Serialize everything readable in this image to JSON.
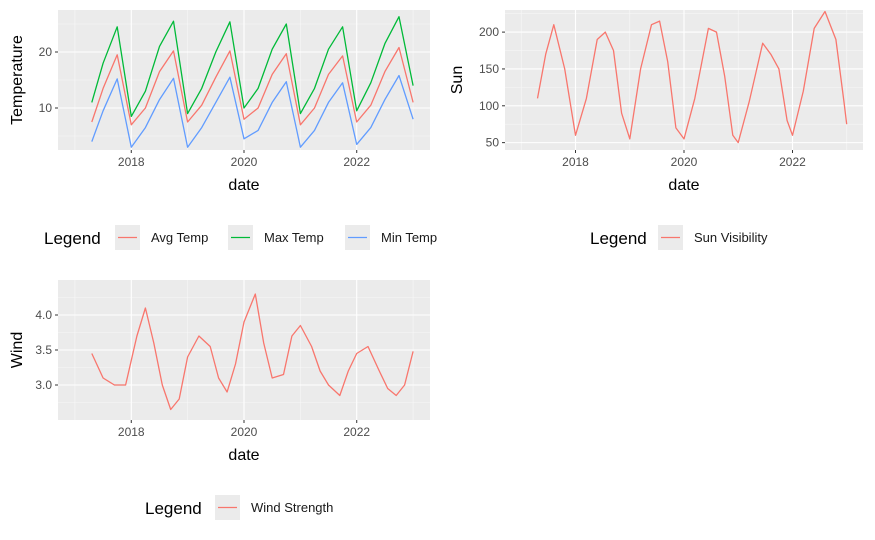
{
  "chart_data": [
    {
      "type": "line",
      "xlabel": "date",
      "ylabel": "Temperature",
      "legend_title": "Legend",
      "legend_position": "bottom",
      "x_ticks": [
        "2018",
        "2020",
        "2022"
      ],
      "y_ticks": [
        10,
        20
      ],
      "xlim": [
        2016.7,
        2023.3
      ],
      "ylim": [
        2.5,
        27.5
      ],
      "grid": true,
      "series": [
        {
          "name": "Avg Temp",
          "color": "#F8766D",
          "x": [
            2017.3,
            2017.5,
            2017.75,
            2018.0,
            2018.25,
            2018.5,
            2018.75,
            2019.0,
            2019.25,
            2019.5,
            2019.75,
            2020.0,
            2020.25,
            2020.5,
            2020.75,
            2021.0,
            2021.25,
            2021.5,
            2021.75,
            2022.0,
            2022.25,
            2022.5,
            2022.75,
            2023.0
          ],
          "y": [
            7.5,
            13.5,
            19.5,
            7.0,
            10.0,
            16.5,
            20.2,
            7.5,
            10.5,
            15.5,
            20.2,
            8.0,
            10.0,
            16.0,
            19.7,
            7.0,
            10.0,
            16.0,
            19.3,
            7.5,
            10.5,
            16.5,
            20.8,
            11.0
          ]
        },
        {
          "name": "Max Temp",
          "color": "#00BA38",
          "x": [
            2017.3,
            2017.5,
            2017.75,
            2018.0,
            2018.25,
            2018.5,
            2018.75,
            2019.0,
            2019.25,
            2019.5,
            2019.75,
            2020.0,
            2020.25,
            2020.5,
            2020.75,
            2021.0,
            2021.25,
            2021.5,
            2021.75,
            2022.0,
            2022.25,
            2022.5,
            2022.75,
            2023.0
          ],
          "y": [
            11.0,
            18.0,
            24.5,
            8.5,
            13.0,
            21.0,
            25.5,
            9.0,
            13.5,
            20.0,
            25.4,
            10.0,
            13.5,
            20.5,
            25.0,
            9.0,
            13.5,
            20.5,
            24.5,
            9.5,
            14.5,
            21.5,
            26.3,
            14.0
          ]
        },
        {
          "name": "Min Temp",
          "color": "#619CFF",
          "x": [
            2017.3,
            2017.5,
            2017.75,
            2018.0,
            2018.25,
            2018.5,
            2018.75,
            2019.0,
            2019.25,
            2019.5,
            2019.75,
            2020.0,
            2020.25,
            2020.5,
            2020.75,
            2021.0,
            2021.25,
            2021.5,
            2021.75,
            2022.0,
            2022.25,
            2022.5,
            2022.75,
            2023.0
          ],
          "y": [
            4.0,
            9.5,
            15.2,
            3.0,
            6.5,
            11.5,
            15.3,
            3.0,
            6.5,
            11.0,
            15.5,
            4.5,
            6.0,
            11.0,
            14.7,
            3.0,
            6.0,
            11.0,
            14.5,
            3.5,
            6.5,
            11.5,
            15.8,
            8.0
          ]
        }
      ]
    },
    {
      "type": "line",
      "xlabel": "date",
      "ylabel": "Sun",
      "legend_title": "Legend",
      "legend_position": "bottom",
      "x_ticks": [
        "2018",
        "2020",
        "2022"
      ],
      "y_ticks": [
        50,
        100,
        150,
        200
      ],
      "xlim": [
        2016.7,
        2023.3
      ],
      "ylim": [
        40,
        230
      ],
      "grid": true,
      "series": [
        {
          "name": "Sun Visibility",
          "color": "#F8766D",
          "x": [
            2017.3,
            2017.45,
            2017.6,
            2017.8,
            2018.0,
            2018.2,
            2018.4,
            2018.55,
            2018.7,
            2018.85,
            2019.0,
            2019.2,
            2019.4,
            2019.55,
            2019.7,
            2019.85,
            2020.0,
            2020.2,
            2020.45,
            2020.6,
            2020.75,
            2020.9,
            2021.0,
            2021.2,
            2021.45,
            2021.6,
            2021.75,
            2021.9,
            2022.0,
            2022.2,
            2022.4,
            2022.6,
            2022.8,
            2022.95,
            2023.0
          ],
          "x_note": "",
          "y": [
            110,
            170,
            210,
            150,
            60,
            110,
            190,
            200,
            175,
            90,
            55,
            150,
            210,
            215,
            160,
            70,
            55,
            110,
            205,
            200,
            140,
            60,
            50,
            105,
            185,
            170,
            150,
            80,
            60,
            120,
            205,
            228,
            190,
            105,
            75
          ]
        }
      ]
    },
    {
      "type": "line",
      "xlabel": "date",
      "ylabel": "Wind",
      "legend_title": "Legend",
      "legend_position": "bottom",
      "x_ticks": [
        "2018",
        "2020",
        "2022"
      ],
      "y_ticks": [
        "3.0",
        "3.5",
        "4.0"
      ],
      "xlim": [
        2016.7,
        2023.3
      ],
      "ylim": [
        2.5,
        4.5
      ],
      "grid": true,
      "series": [
        {
          "name": "Wind Strength",
          "color": "#F8766D",
          "x": [
            2017.3,
            2017.5,
            2017.7,
            2017.9,
            2018.1,
            2018.25,
            2018.4,
            2018.55,
            2018.7,
            2018.85,
            2019.0,
            2019.2,
            2019.4,
            2019.55,
            2019.7,
            2019.85,
            2020.0,
            2020.2,
            2020.35,
            2020.5,
            2020.7,
            2020.85,
            2021.0,
            2021.2,
            2021.35,
            2021.5,
            2021.7,
            2021.85,
            2022.0,
            2022.2,
            2022.4,
            2022.55,
            2022.7,
            2022.85,
            2023.0
          ],
          "y": [
            3.45,
            3.1,
            3.0,
            3.0,
            3.7,
            4.1,
            3.6,
            3.0,
            2.65,
            2.8,
            3.4,
            3.7,
            3.55,
            3.1,
            2.9,
            3.3,
            3.9,
            4.3,
            3.6,
            3.1,
            3.15,
            3.7,
            3.85,
            3.55,
            3.2,
            3.0,
            2.85,
            3.2,
            3.45,
            3.55,
            3.2,
            2.95,
            2.85,
            3.0,
            3.48
          ]
        }
      ]
    }
  ]
}
